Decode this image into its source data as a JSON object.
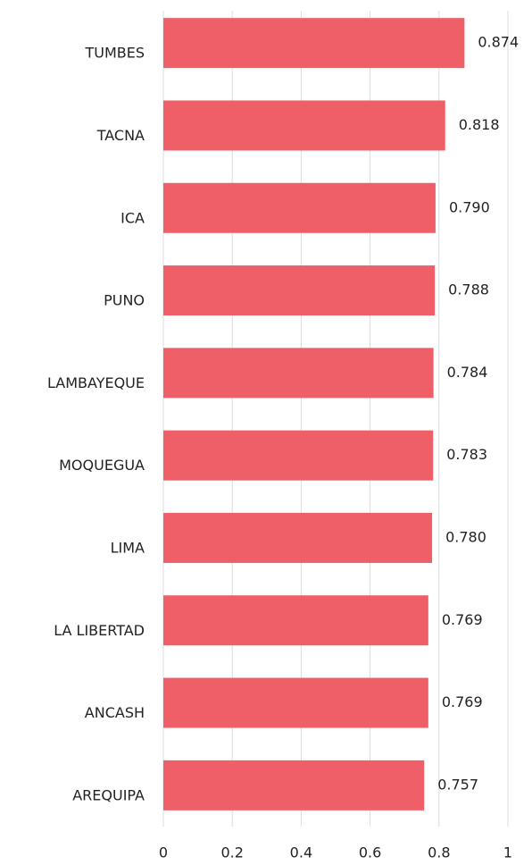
{
  "chart_data": {
    "type": "barh",
    "categories": [
      "TUMBES",
      "TACNA",
      "ICA",
      "PUNO",
      "LAMBAYEQUE",
      "MOQUEGUA",
      "LIMA",
      "LA LIBERTAD",
      "ANCASH",
      "AREQUIPA"
    ],
    "values": [
      0.874,
      0.818,
      0.79,
      0.788,
      0.784,
      0.783,
      0.78,
      0.769,
      0.769,
      0.757
    ],
    "value_labels": [
      "0.874",
      "0.818",
      "0.790",
      "0.788",
      "0.784",
      "0.783",
      "0.780",
      "0.769",
      "0.769",
      "0.757"
    ],
    "color": "#ef5f67",
    "xlim": [
      0,
      1
    ],
    "xticks": [
      0,
      0.2,
      0.4,
      0.6,
      0.8,
      1
    ],
    "grid": true
  }
}
